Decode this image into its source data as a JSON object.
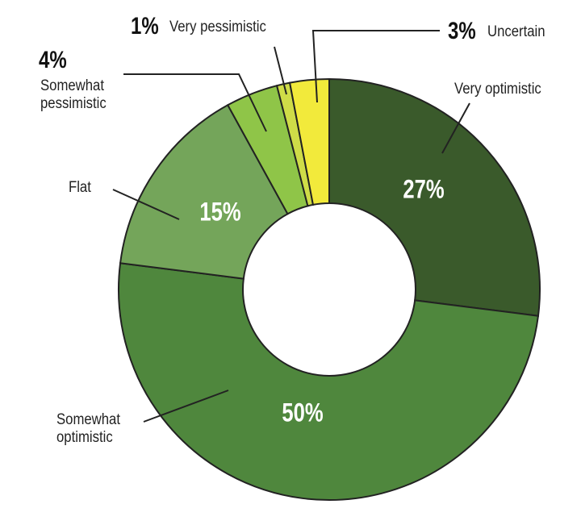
{
  "chart_data": {
    "type": "pie",
    "donut": true,
    "title": "",
    "slices": [
      {
        "label": "Very optimistic",
        "value": 27,
        "value_label": "27%",
        "color": "#3a5a2b"
      },
      {
        "label": "Somewhat optimistic",
        "value": 50,
        "value_label": "50%",
        "color": "#4f873d"
      },
      {
        "label": "Flat",
        "value": 15,
        "value_label": "15%",
        "color": "#74a55a"
      },
      {
        "label": "Somewhat pessimistic",
        "value": 4,
        "value_label": "4%",
        "color": "#8fc548"
      },
      {
        "label": "Very pessimistic",
        "value": 1,
        "value_label": "1%",
        "color": "#cfdc48"
      },
      {
        "label": "Uncertain",
        "value": 3,
        "value_label": "3%",
        "color": "#f2ea3b"
      }
    ],
    "start": "top",
    "direction": "clockwise"
  }
}
